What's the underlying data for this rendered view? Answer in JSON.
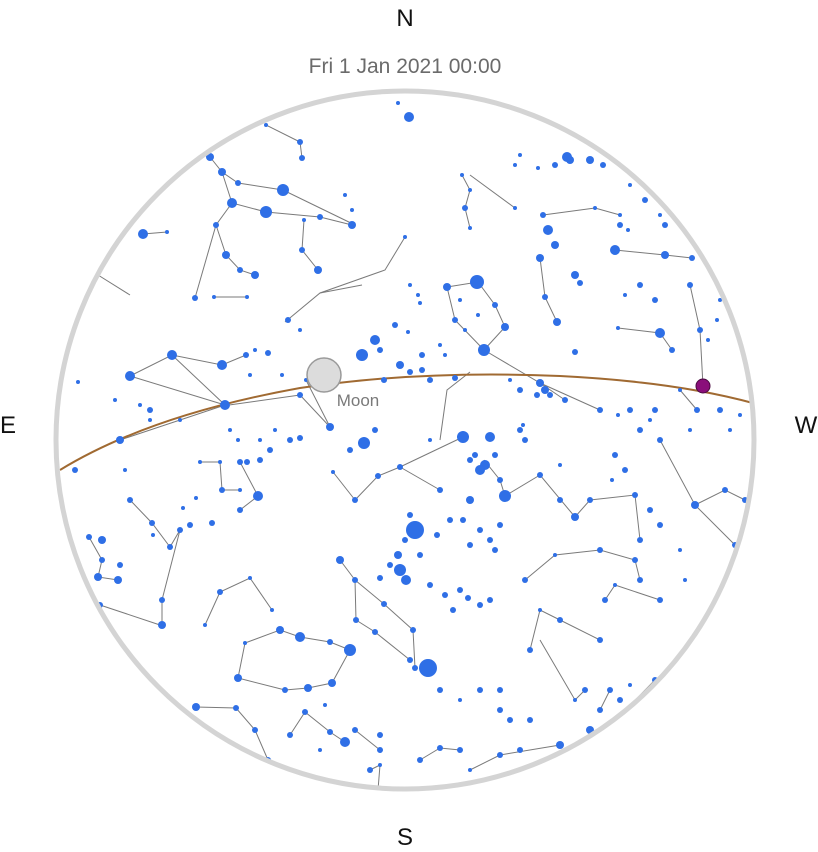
{
  "header": {
    "datetime": "Fri 1 Jan 2021 00:00"
  },
  "compass": {
    "north": "N",
    "south": "S",
    "east": "E",
    "west": "W"
  },
  "moon": {
    "label": "Moon",
    "color": "#dcdcdc"
  },
  "colors": {
    "star": "#2f6fe6",
    "ecliptic": "#a06a32",
    "horizon": "#d4d4d4",
    "constellation_line": "#7a7a7a",
    "planet": "#8a0f7a"
  },
  "icons": {
    "planet": "planet-icon",
    "moon": "moon-icon"
  }
}
